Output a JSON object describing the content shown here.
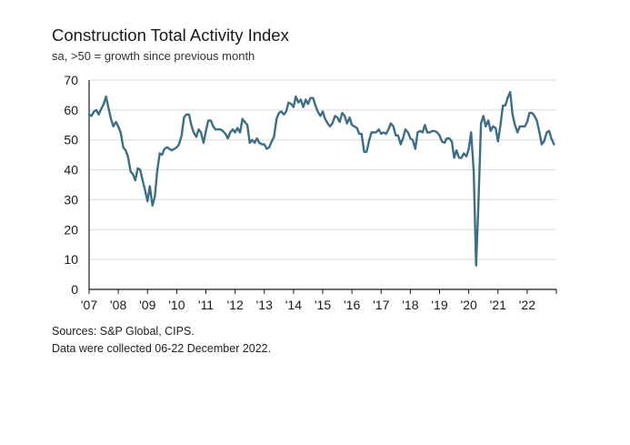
{
  "chart_data": {
    "type": "line",
    "title": "Construction Total Activity Index",
    "subtitle": "sa, >50 = growth since previous month",
    "xlabel": "",
    "ylabel": "",
    "ylim": [
      0,
      70
    ],
    "yticks": [
      0,
      10,
      20,
      30,
      40,
      50,
      60,
      70
    ],
    "xlim": [
      2007.0,
      2023.0
    ],
    "xticks": [
      "'07",
      "'08",
      "'09",
      "'10",
      "'11",
      "'12",
      "'13",
      "'14",
      "'15",
      "'16",
      "'17",
      "'18",
      "'19",
      "'20",
      "'21",
      "'22"
    ],
    "xtick_values": [
      2007,
      2008,
      2009,
      2010,
      2011,
      2012,
      2013,
      2014,
      2015,
      2016,
      2017,
      2018,
      2019,
      2020,
      2021,
      2022
    ],
    "grid": "horizontal",
    "line_color": "#3d6e84",
    "series": [
      {
        "name": "",
        "x": [
          2007.0,
          2007.08,
          2007.17,
          2007.25,
          2007.33,
          2007.42,
          2007.5,
          2007.58,
          2007.67,
          2007.75,
          2007.83,
          2007.92,
          2008.0,
          2008.08,
          2008.17,
          2008.25,
          2008.33,
          2008.42,
          2008.5,
          2008.58,
          2008.67,
          2008.75,
          2008.83,
          2008.92,
          2009.0,
          2009.08,
          2009.17,
          2009.25,
          2009.33,
          2009.42,
          2009.5,
          2009.58,
          2009.67,
          2009.75,
          2009.83,
          2009.92,
          2010.0,
          2010.08,
          2010.17,
          2010.25,
          2010.33,
          2010.42,
          2010.5,
          2010.58,
          2010.67,
          2010.75,
          2010.83,
          2010.92,
          2011.0,
          2011.08,
          2011.17,
          2011.25,
          2011.33,
          2011.42,
          2011.5,
          2011.58,
          2011.67,
          2011.75,
          2011.83,
          2011.92,
          2012.0,
          2012.08,
          2012.17,
          2012.25,
          2012.33,
          2012.42,
          2012.5,
          2012.58,
          2012.67,
          2012.75,
          2012.83,
          2012.92,
          2013.0,
          2013.08,
          2013.17,
          2013.25,
          2013.33,
          2013.42,
          2013.5,
          2013.58,
          2013.67,
          2013.75,
          2013.83,
          2013.92,
          2014.0,
          2014.08,
          2014.17,
          2014.25,
          2014.33,
          2014.42,
          2014.5,
          2014.58,
          2014.67,
          2014.75,
          2014.83,
          2014.92,
          2015.0,
          2015.08,
          2015.17,
          2015.25,
          2015.33,
          2015.42,
          2015.5,
          2015.58,
          2015.67,
          2015.75,
          2015.83,
          2015.92,
          2016.0,
          2016.08,
          2016.17,
          2016.25,
          2016.33,
          2016.42,
          2016.5,
          2016.58,
          2016.67,
          2016.75,
          2016.83,
          2016.92,
          2017.0,
          2017.08,
          2017.17,
          2017.25,
          2017.33,
          2017.42,
          2017.5,
          2017.58,
          2017.67,
          2017.75,
          2017.83,
          2017.92,
          2018.0,
          2018.08,
          2018.17,
          2018.25,
          2018.33,
          2018.42,
          2018.5,
          2018.58,
          2018.67,
          2018.75,
          2018.83,
          2018.92,
          2019.0,
          2019.08,
          2019.17,
          2019.25,
          2019.33,
          2019.42,
          2019.5,
          2019.58,
          2019.67,
          2019.75,
          2019.83,
          2019.92,
          2020.0,
          2020.08,
          2020.17,
          2020.25,
          2020.33,
          2020.42,
          2020.5,
          2020.58,
          2020.67,
          2020.75,
          2020.83,
          2020.92,
          2021.0,
          2021.08,
          2021.17,
          2021.25,
          2021.33,
          2021.42,
          2021.5,
          2021.58,
          2021.67,
          2021.75,
          2021.83,
          2021.92,
          2022.0,
          2022.08,
          2022.17,
          2022.25,
          2022.33,
          2022.42,
          2022.5,
          2022.58,
          2022.67,
          2022.75,
          2022.83,
          2022.92
        ],
        "values": [
          58.5,
          58.0,
          59.5,
          60.0,
          58.5,
          60.5,
          62.0,
          64.5,
          60.5,
          57.0,
          54.5,
          56.0,
          54.5,
          52.5,
          47.5,
          46.5,
          44.5,
          39.5,
          38.5,
          36.5,
          40.5,
          40.0,
          36.5,
          33.0,
          29.5,
          34.5,
          28.0,
          31.0,
          39.5,
          45.5,
          45.0,
          47.0,
          47.5,
          47.0,
          46.5,
          47.0,
          47.5,
          48.5,
          51.5,
          57.5,
          58.5,
          58.5,
          55.0,
          52.5,
          51.0,
          53.5,
          52.5,
          49.0,
          53.0,
          56.5,
          56.5,
          54.5,
          53.5,
          53.5,
          53.5,
          53.0,
          52.0,
          50.5,
          52.5,
          53.5,
          52.5,
          54.0,
          52.5,
          57.0,
          56.0,
          55.0,
          49.0,
          50.0,
          49.0,
          50.5,
          49.0,
          48.5,
          48.5,
          47.0,
          47.5,
          49.5,
          51.0,
          57.0,
          59.0,
          59.5,
          58.5,
          59.5,
          62.5,
          62.0,
          61.0,
          64.5,
          62.5,
          63.5,
          61.0,
          63.5,
          62.0,
          64.0,
          64.0,
          61.5,
          59.5,
          58.0,
          59.5,
          57.0,
          55.5,
          54.5,
          55.5,
          58.0,
          57.5,
          56.0,
          59.0,
          58.0,
          55.5,
          57.5,
          55.0,
          54.5,
          54.0,
          52.0,
          52.0,
          46.0,
          46.0,
          49.5,
          52.5,
          52.5,
          52.5,
          53.5,
          52.0,
          52.5,
          52.0,
          53.5,
          55.5,
          54.5,
          51.5,
          51.5,
          48.5,
          50.5,
          53.5,
          52.5,
          50.5,
          50.0,
          47.0,
          52.5,
          53.0,
          52.5,
          55.0,
          52.5,
          52.5,
          53.0,
          53.0,
          52.5,
          51.5,
          49.5,
          49.0,
          50.5,
          50.5,
          49.5,
          44.0,
          46.5,
          44.0,
          44.0,
          45.5,
          44.5,
          47.0,
          52.5,
          39.5,
          8.0,
          28.0,
          55.5,
          58.0,
          54.5,
          56.5,
          53.0,
          54.5,
          54.0,
          49.5,
          54.5,
          61.5,
          61.5,
          64.0,
          66.0,
          58.5,
          55.0,
          52.5,
          54.5,
          54.5,
          54.5,
          56.0,
          59.0,
          59.0,
          58.0,
          56.5,
          52.5,
          48.5,
          49.5,
          52.5,
          53.0,
          50.5,
          48.5
        ]
      }
    ]
  },
  "notes": {
    "source": "Sources: S&P Global, CIPS.",
    "collected": "Data were collected 06-22 December 2022."
  }
}
